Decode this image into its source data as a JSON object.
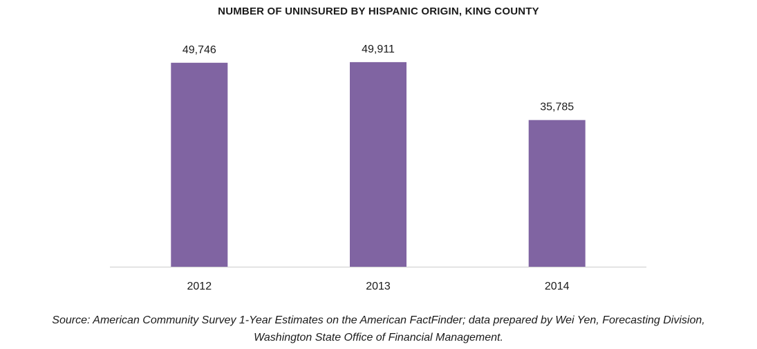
{
  "chart_data": {
    "type": "bar",
    "title": "NUMBER OF UNINSURED BY HISPANIC ORIGIN, KING COUNTY",
    "categories": [
      "2012",
      "2013",
      "2014"
    ],
    "values": [
      49746,
      49911,
      35785
    ],
    "value_labels": [
      "49,746",
      "49,911",
      "35,785"
    ],
    "xlabel": "",
    "ylabel": "",
    "ylim": [
      0,
      60000
    ],
    "grid": false,
    "legend": "none",
    "bar_color": "#8064a2",
    "axis_color": "#d9d9d9"
  },
  "source": {
    "line1": "Source: American Community Survey 1-Year Estimates on the American FactFinder; data prepared by Wei Yen, Forecasting Division,",
    "line2": "Washington State Office of Financial Management."
  }
}
